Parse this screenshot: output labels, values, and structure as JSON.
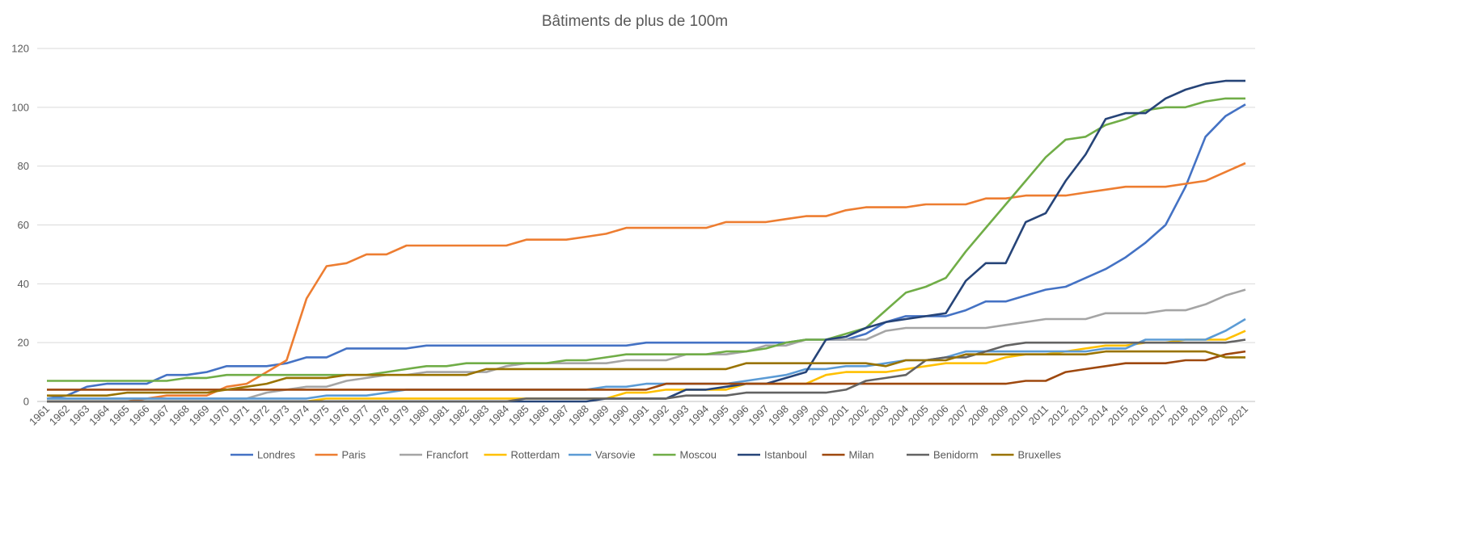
{
  "chart_data": {
    "type": "line",
    "title": "Bâtiments de plus de 100m",
    "xlabel": "",
    "ylabel": "",
    "ylim": [
      0,
      120
    ],
    "yticks": [
      0,
      20,
      40,
      60,
      80,
      100,
      120
    ],
    "grid": true,
    "legend_position": "bottom",
    "x": [
      1961,
      1962,
      1963,
      1964,
      1965,
      1966,
      1967,
      1968,
      1969,
      1970,
      1971,
      1972,
      1973,
      1974,
      1975,
      1976,
      1977,
      1978,
      1979,
      1980,
      1981,
      1982,
      1983,
      1984,
      1985,
      1986,
      1987,
      1988,
      1989,
      1990,
      1991,
      1992,
      1993,
      1994,
      1995,
      1996,
      1997,
      1998,
      1999,
      2000,
      2001,
      2002,
      2003,
      2004,
      2005,
      2006,
      2007,
      2008,
      2009,
      2010,
      2011,
      2012,
      2013,
      2014,
      2015,
      2016,
      2017,
      2018,
      2019,
      2020,
      2021
    ],
    "series": [
      {
        "name": "Londres",
        "color": "#4472C4",
        "values": [
          1,
          2,
          5,
          6,
          6,
          6,
          9,
          9,
          10,
          12,
          12,
          12,
          13,
          15,
          15,
          18,
          18,
          18,
          18,
          19,
          19,
          19,
          19,
          19,
          19,
          19,
          19,
          19,
          19,
          19,
          20,
          20,
          20,
          20,
          20,
          20,
          20,
          20,
          21,
          21,
          21,
          23,
          27,
          29,
          29,
          29,
          31,
          34,
          34,
          36,
          38,
          39,
          42,
          45,
          49,
          54,
          60,
          73,
          90,
          97,
          101
        ]
      },
      {
        "name": "Paris",
        "color": "#ED7D31",
        "values": [
          0,
          0,
          0,
          0,
          0,
          1,
          2,
          2,
          2,
          5,
          6,
          10,
          14,
          35,
          46,
          47,
          50,
          50,
          53,
          53,
          53,
          53,
          53,
          53,
          55,
          55,
          55,
          56,
          57,
          59,
          59,
          59,
          59,
          59,
          61,
          61,
          61,
          62,
          63,
          63,
          65,
          66,
          66,
          66,
          67,
          67,
          67,
          69,
          69,
          70,
          70,
          70,
          71,
          72,
          73,
          73,
          73,
          74,
          75,
          78,
          81
        ]
      },
      {
        "name": "Francfort",
        "color": "#A5A5A5",
        "values": [
          1,
          1,
          1,
          1,
          1,
          1,
          1,
          1,
          1,
          1,
          1,
          3,
          4,
          5,
          5,
          7,
          8,
          9,
          9,
          10,
          10,
          10,
          10,
          12,
          13,
          13,
          13,
          13,
          13,
          14,
          14,
          14,
          16,
          16,
          16,
          17,
          19,
          19,
          21,
          21,
          21,
          21,
          24,
          25,
          25,
          25,
          25,
          25,
          26,
          27,
          28,
          28,
          28,
          30,
          30,
          30,
          31,
          31,
          33,
          36,
          38
        ]
      },
      {
        "name": "Rotterdam",
        "color": "#FFC000",
        "values": [
          0,
          0,
          0,
          0,
          0,
          0,
          0,
          0,
          0,
          0,
          0,
          0,
          0,
          0,
          1,
          1,
          1,
          1,
          1,
          1,
          1,
          1,
          1,
          1,
          1,
          1,
          1,
          1,
          1,
          3,
          3,
          4,
          4,
          4,
          4,
          6,
          6,
          6,
          6,
          9,
          10,
          10,
          10,
          11,
          12,
          13,
          13,
          13,
          15,
          16,
          16,
          17,
          18,
          19,
          19,
          20,
          20,
          21,
          21,
          21,
          24
        ]
      },
      {
        "name": "Varsovie",
        "color": "#5B9BD5",
        "values": [
          1,
          1,
          1,
          1,
          1,
          1,
          1,
          1,
          1,
          1,
          1,
          1,
          1,
          1,
          2,
          2,
          2,
          3,
          4,
          4,
          4,
          4,
          4,
          4,
          4,
          4,
          4,
          4,
          5,
          5,
          6,
          6,
          6,
          6,
          6,
          7,
          8,
          9,
          11,
          11,
          12,
          12,
          13,
          14,
          14,
          15,
          17,
          17,
          17,
          17,
          17,
          17,
          17,
          18,
          18,
          21,
          21,
          21,
          21,
          24,
          28
        ]
      },
      {
        "name": "Moscou",
        "color": "#70AD47",
        "values": [
          7,
          7,
          7,
          7,
          7,
          7,
          7,
          8,
          8,
          9,
          9,
          9,
          9,
          9,
          9,
          9,
          9,
          10,
          11,
          12,
          12,
          13,
          13,
          13,
          13,
          13,
          14,
          14,
          15,
          16,
          16,
          16,
          16,
          16,
          17,
          17,
          18,
          20,
          21,
          21,
          23,
          25,
          31,
          37,
          39,
          42,
          51,
          59,
          67,
          75,
          83,
          89,
          90,
          94,
          96,
          99,
          100,
          100,
          102,
          103,
          103
        ]
      },
      {
        "name": "Istanboul",
        "color": "#264478",
        "values": [
          0,
          0,
          0,
          0,
          0,
          0,
          0,
          0,
          0,
          0,
          0,
          0,
          0,
          0,
          0,
          0,
          0,
          0,
          0,
          0,
          0,
          0,
          0,
          0,
          0,
          0,
          0,
          0,
          1,
          1,
          1,
          1,
          4,
          4,
          5,
          6,
          6,
          8,
          10,
          21,
          22,
          25,
          27,
          28,
          29,
          30,
          41,
          47,
          47,
          61,
          64,
          75,
          84,
          96,
          98,
          98,
          103,
          106,
          108,
          109,
          109
        ]
      },
      {
        "name": "Milan",
        "color": "#9E480E",
        "values": [
          4,
          4,
          4,
          4,
          4,
          4,
          4,
          4,
          4,
          4,
          4,
          4,
          4,
          4,
          4,
          4,
          4,
          4,
          4,
          4,
          4,
          4,
          4,
          4,
          4,
          4,
          4,
          4,
          4,
          4,
          4,
          6,
          6,
          6,
          6,
          6,
          6,
          6,
          6,
          6,
          6,
          6,
          6,
          6,
          6,
          6,
          6,
          6,
          6,
          7,
          7,
          10,
          11,
          12,
          13,
          13,
          13,
          14,
          14,
          16,
          17
        ]
      },
      {
        "name": "Benidorm",
        "color": "#636363",
        "values": [
          0,
          0,
          0,
          0,
          0,
          0,
          0,
          0,
          0,
          0,
          0,
          0,
          0,
          0,
          0,
          0,
          0,
          0,
          0,
          0,
          0,
          0,
          0,
          0,
          1,
          1,
          1,
          1,
          1,
          1,
          1,
          1,
          2,
          2,
          2,
          3,
          3,
          3,
          3,
          3,
          4,
          7,
          8,
          9,
          14,
          15,
          15,
          17,
          19,
          20,
          20,
          20,
          20,
          20,
          20,
          20,
          20,
          20,
          20,
          20,
          21
        ]
      },
      {
        "name": "Bruxelles",
        "color": "#997300",
        "values": [
          2,
          2,
          2,
          2,
          3,
          3,
          3,
          3,
          3,
          4,
          5,
          6,
          8,
          8,
          8,
          9,
          9,
          9,
          9,
          9,
          9,
          9,
          11,
          11,
          11,
          11,
          11,
          11,
          11,
          11,
          11,
          11,
          11,
          11,
          11,
          13,
          13,
          13,
          13,
          13,
          13,
          13,
          12,
          14,
          14,
          14,
          16,
          16,
          16,
          16,
          16,
          16,
          16,
          17,
          17,
          17,
          17,
          17,
          17,
          15,
          15
        ]
      }
    ]
  }
}
